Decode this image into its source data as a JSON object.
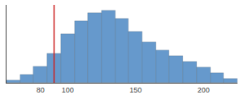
{
  "chart_data": {
    "type": "histogram",
    "bins": [
      55,
      65,
      75,
      85,
      95,
      105,
      115,
      125,
      135,
      145,
      155,
      165,
      175,
      185,
      195,
      205,
      215,
      225
    ],
    "values": [
      0.5,
      1.5,
      3.0,
      5.5,
      9.0,
      11.5,
      13.0,
      13.5,
      12.0,
      9.5,
      7.5,
      6.0,
      5.0,
      4.0,
      2.8,
      1.8,
      0.8
    ],
    "color": "#6699CC",
    "vline": {
      "x": 90,
      "color": "#CC2222"
    },
    "xlim": [
      55,
      225
    ],
    "ylim": [
      0,
      14.5
    ],
    "xticks": [
      80,
      100,
      150,
      200
    ],
    "tick_labels": "x",
    "grid": false
  }
}
